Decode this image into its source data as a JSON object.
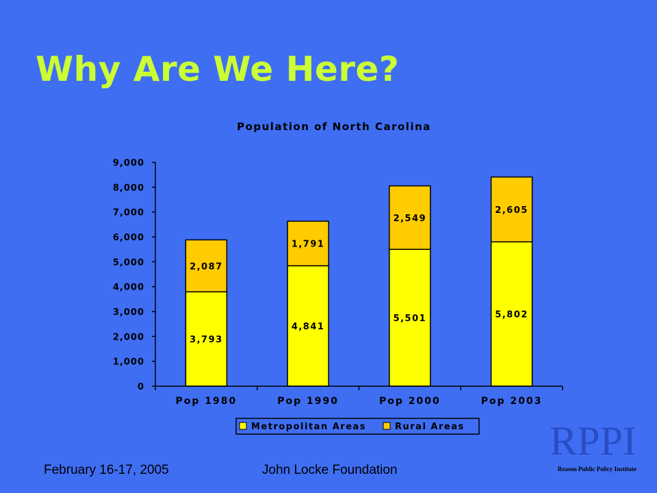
{
  "slide": {
    "title": "Why Are We Here?",
    "background": "#3f6ef3",
    "title_color": "#ccff33"
  },
  "footer": {
    "date": "February 16-17, 2005",
    "organization": "John Locke Foundation"
  },
  "logo": {
    "mark": "RPPI",
    "caption": "Reason Public Policy Institute"
  },
  "chart_data": {
    "type": "bar",
    "stacked": true,
    "title": "Population of North Carolina",
    "categories": [
      "Pop 1980",
      "Pop 1990",
      "Pop 2000",
      "Pop 2003"
    ],
    "series": [
      {
        "name": "Metropolitan Areas",
        "values": [
          3793,
          4841,
          5501,
          5802
        ],
        "labels": [
          "3,793",
          "4,841",
          "5,501",
          "5,802"
        ],
        "color": "#ffff00"
      },
      {
        "name": "Rural Areas",
        "values": [
          2087,
          1791,
          2549,
          2605
        ],
        "labels": [
          "2,087",
          "1,791",
          "2,549",
          "2,605"
        ],
        "color": "#ffcc00"
      }
    ],
    "ylim": [
      0,
      9000
    ],
    "yticks": [
      "0",
      "1,000",
      "2,000",
      "3,000",
      "4,000",
      "5,000",
      "6,000",
      "7,000",
      "8,000",
      "9,000"
    ],
    "grid": false,
    "legend_position": "bottom"
  }
}
